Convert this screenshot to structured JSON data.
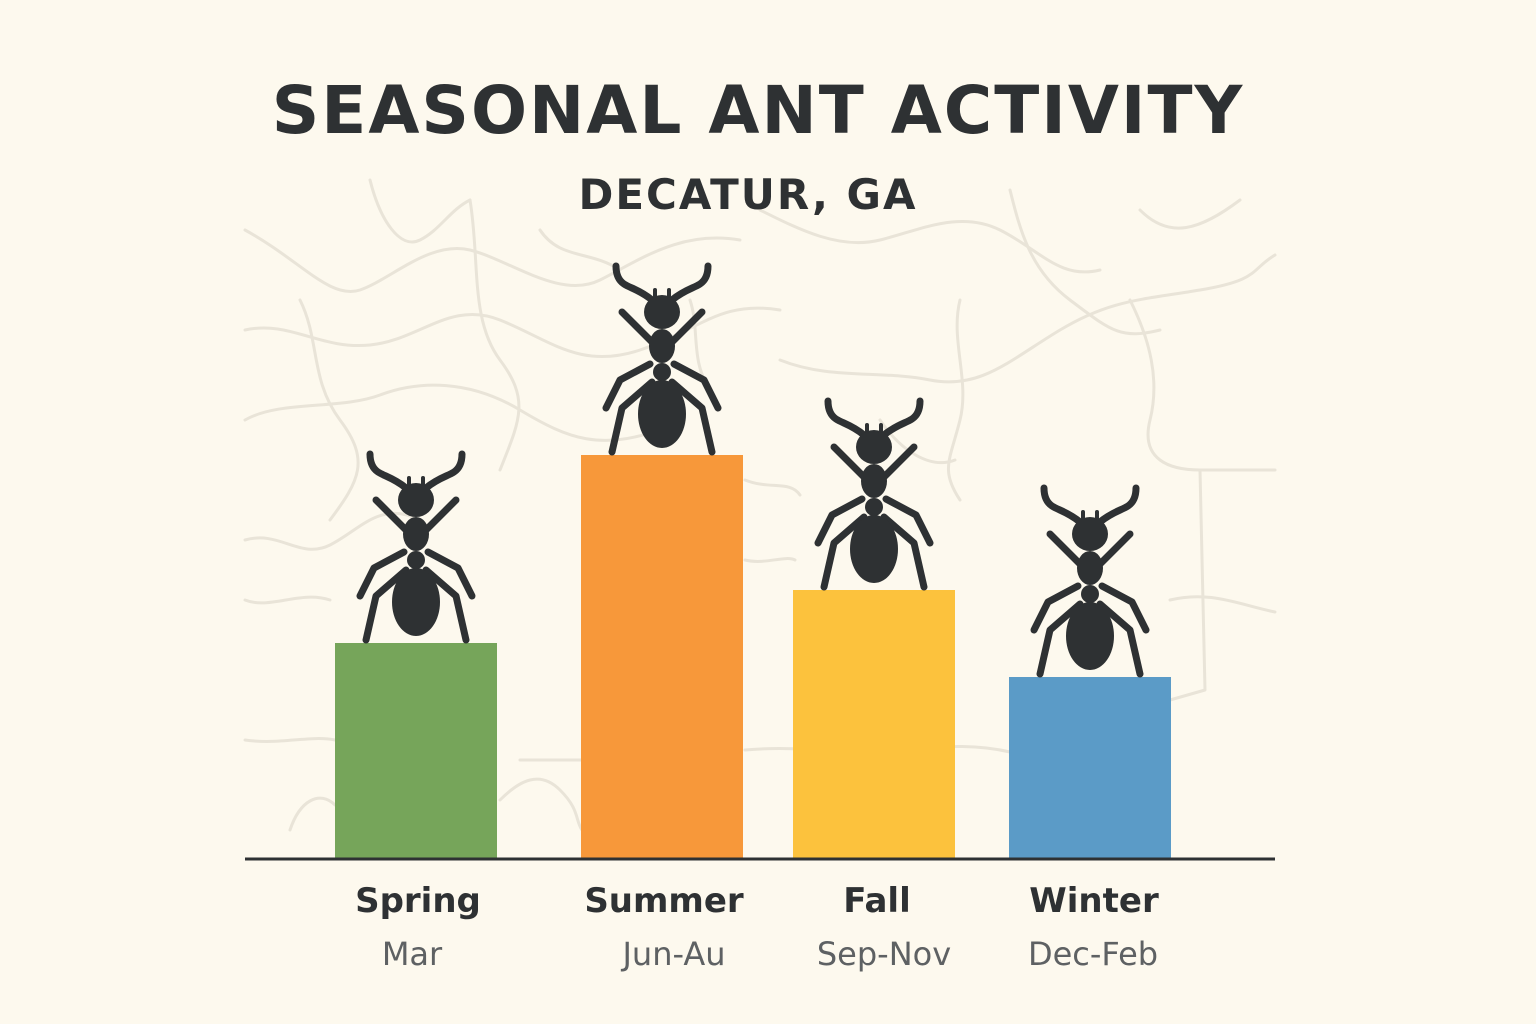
{
  "page": {
    "background": "#fdf9ee",
    "map_line_color": "#e9e4d8",
    "ink_color": "#2e3133"
  },
  "chart_data": {
    "type": "bar",
    "title": "SEASONAL ANT ACTIVITY",
    "subtitle": "DECATUR, GA",
    "categories": [
      "Spring",
      "Summer",
      "Fall",
      "Winter"
    ],
    "subcategories": [
      "Mar",
      "Jun-Au",
      "Sep-Nov",
      "Dec-Feb"
    ],
    "values": [
      216,
      404,
      269,
      182
    ],
    "colors": [
      "#76a55a",
      "#f7983a",
      "#fcc23d",
      "#5b9bc7"
    ],
    "ylim": [
      0,
      410
    ],
    "grid": false,
    "legend": "none",
    "marker_icon": "ant-icon"
  }
}
